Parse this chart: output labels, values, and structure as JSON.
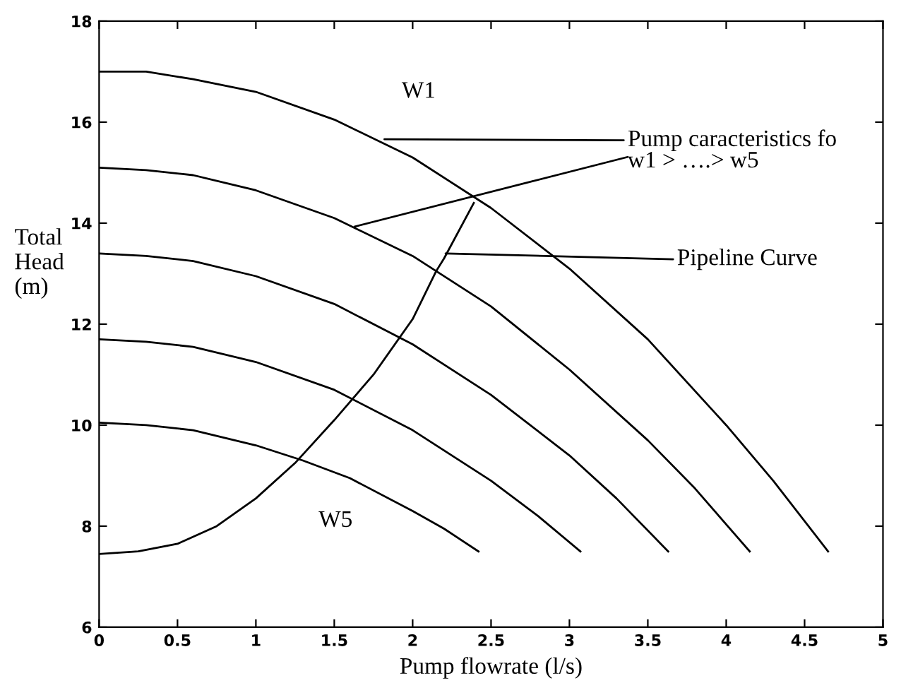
{
  "chart_data": {
    "type": "line",
    "xlabel": "Pump flowrate (l/s)",
    "ylabel": "Total\nHead\n(m)",
    "xlim": [
      0,
      5
    ],
    "ylim": [
      6,
      18
    ],
    "xticks": [
      0,
      0.5,
      1,
      1.5,
      2,
      2.5,
      3,
      3.5,
      4,
      4.5,
      5
    ],
    "yticks": [
      6,
      8,
      10,
      12,
      14,
      16,
      18
    ],
    "grid": false,
    "legend": false,
    "marker": "none",
    "line_style": "solid",
    "series": [
      {
        "color": "#000000",
        "x": [
          0,
          0.3,
          0.6,
          1.0,
          1.5,
          2.0,
          2.5,
          3.0,
          3.5,
          4.0,
          4.3,
          4.65
        ],
        "values": [
          17.0,
          17.0,
          16.85,
          16.6,
          16.05,
          15.3,
          14.3,
          13.1,
          11.7,
          10.0,
          8.9,
          7.5
        ]
      },
      {
        "color": "#000000",
        "x": [
          0,
          0.3,
          0.6,
          1.0,
          1.5,
          2.0,
          2.5,
          3.0,
          3.5,
          3.8,
          4.15
        ],
        "values": [
          15.1,
          15.05,
          14.95,
          14.65,
          14.1,
          13.35,
          12.35,
          11.1,
          9.7,
          8.75,
          7.5
        ]
      },
      {
        "color": "#000000",
        "x": [
          0,
          0.3,
          0.6,
          1.0,
          1.5,
          2.0,
          2.5,
          3.0,
          3.3,
          3.63
        ],
        "values": [
          13.4,
          13.35,
          13.25,
          12.95,
          12.4,
          11.6,
          10.6,
          9.4,
          8.55,
          7.5
        ]
      },
      {
        "color": "#000000",
        "x": [
          0,
          0.3,
          0.6,
          1.0,
          1.5,
          2.0,
          2.5,
          2.8,
          3.07
        ],
        "values": [
          11.7,
          11.65,
          11.55,
          11.25,
          10.7,
          9.9,
          8.9,
          8.2,
          7.5
        ]
      },
      {
        "color": "#000000",
        "x": [
          0,
          0.3,
          0.6,
          1.0,
          1.3,
          1.6,
          2.0,
          2.2,
          2.42
        ],
        "values": [
          10.05,
          10.0,
          9.9,
          9.6,
          9.3,
          8.95,
          8.3,
          7.95,
          7.5
        ]
      },
      {
        "color": "#000000",
        "x": [
          0,
          0.25,
          0.5,
          0.75,
          1.0,
          1.25,
          1.5,
          1.75,
          2.0,
          2.15,
          2.2,
          2.39
        ],
        "values": [
          7.45,
          7.5,
          7.65,
          8.0,
          8.55,
          9.25,
          10.1,
          11.0,
          12.1,
          13.05,
          13.3,
          14.4
        ]
      }
    ],
    "annotations": [
      "W1",
      "W5",
      {
        "text": "Pump caracteristics fo\nw1 > ….> w5",
        "x": 1.82,
        "y": 15.66
      },
      {
        "text": "Pipeline Curve",
        "x": 2.21,
        "y": 13.4
      }
    ]
  }
}
